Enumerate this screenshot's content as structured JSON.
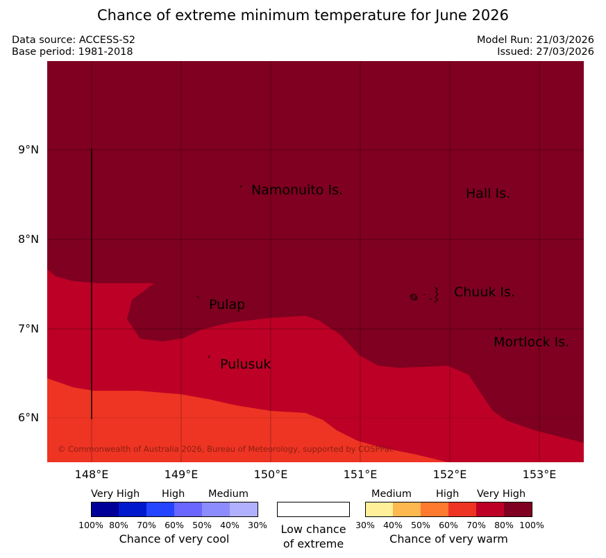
{
  "title": "Chance of extreme minimum temperature for June 2026",
  "meta": {
    "data_source": "Data source: ACCESS-S2",
    "base_period": "Base period: 1981-2018",
    "model_run": "Model Run: 21/03/2026",
    "issued": "Issued: 27/03/2026"
  },
  "map": {
    "lat_ticks": [
      "9°N",
      "8°N",
      "7°N",
      "6°N"
    ],
    "lon_ticks": [
      "148°E",
      "149°E",
      "150°E",
      "151°E",
      "152°E",
      "153°E"
    ],
    "places": {
      "namonuito": "Namonuito Is.",
      "hall": "Hall Is.",
      "pulap": "Pulap",
      "chuuk": "Chuuk Is.",
      "pulusuk": "Pulusuk",
      "mortlock": "Mortlock Is."
    },
    "copyright": "© Commonwealth of Australia 2026, Bureau of Meteorology, supported by COSPPac",
    "colors": {
      "very_high_warm": "#7f0020",
      "high_warm": "#bd0026",
      "medium_high_warm": "#ee3423"
    }
  },
  "legend": {
    "cool": {
      "headings": [
        "Very High",
        "High",
        "Medium"
      ],
      "ticks": [
        "100%",
        "80%",
        "70%",
        "60%",
        "50%",
        "40%",
        "30%"
      ],
      "colors": [
        "#000099",
        "#0019cc",
        "#2444ff",
        "#6b66ff",
        "#8c8cff",
        "#b0b0ff"
      ],
      "title": "Chance of very cool"
    },
    "low": {
      "line1": "Low chance",
      "line2": "of extreme"
    },
    "warm": {
      "headings": [
        "Medium",
        "High",
        "Very High"
      ],
      "ticks": [
        "30%",
        "40%",
        "50%",
        "60%",
        "70%",
        "80%",
        "100%"
      ],
      "colors": [
        "#fff099",
        "#fdb84f",
        "#fd7a2f",
        "#ee3423",
        "#bd0026",
        "#7f0020"
      ],
      "title": "Chance of very warm"
    }
  }
}
